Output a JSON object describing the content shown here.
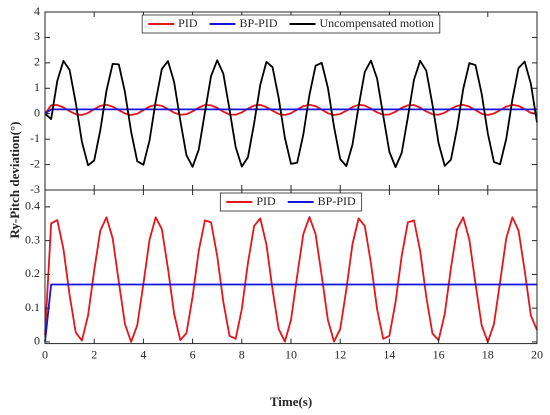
{
  "chart_data": [
    {
      "type": "line",
      "ylabel": "Ry-Pitch deviation(°)",
      "x": [
        0,
        0.25,
        0.5,
        0.75,
        1,
        1.25,
        1.5,
        1.75,
        2,
        2.25,
        2.5,
        2.75,
        3,
        3.25,
        3.5,
        3.75,
        4,
        4.25,
        4.5,
        4.75,
        5,
        5.25,
        5.5,
        5.75,
        6,
        6.25,
        6.5,
        6.75,
        7,
        7.25,
        7.5,
        7.75,
        8,
        8.25,
        8.5,
        8.75,
        9,
        9.25,
        9.5,
        9.75,
        10,
        10.25,
        10.5,
        10.75,
        11,
        11.25,
        11.5,
        11.75,
        12,
        12.25,
        12.5,
        12.75,
        13,
        13.25,
        13.5,
        13.75,
        14,
        14.25,
        14.5,
        14.75,
        15,
        15.25,
        15.5,
        15.75,
        16,
        16.25,
        16.5,
        16.75,
        17,
        17.25,
        17.5,
        17.75,
        18,
        18.25,
        18.5,
        18.75,
        19,
        19.25,
        19.5,
        19.75,
        20
      ],
      "xlim": [
        0,
        20
      ],
      "ylim": [
        -3,
        4
      ],
      "yticks": [
        -3,
        -2,
        -1,
        0,
        1,
        2,
        3,
        4
      ],
      "legend": "upper center",
      "series": [
        {
          "name": "PID",
          "color": "#e6141b",
          "values": [
            0,
            0.33,
            0.34,
            0.25,
            0.1,
            -0.02,
            -0.05,
            0.03,
            0.18,
            0.31,
            0.35,
            0.28,
            0.14,
            0.01,
            -0.05,
            0.0,
            0.14,
            0.28,
            0.35,
            0.31,
            0.18,
            0.04,
            -0.04,
            -0.02,
            0.09,
            0.24,
            0.34,
            0.33,
            0.23,
            0.08,
            -0.03,
            -0.04,
            0.05,
            0.2,
            0.32,
            0.35,
            0.26,
            0.12,
            -0.01,
            -0.05,
            0.02,
            0.16,
            0.3,
            0.35,
            0.3,
            0.16,
            0.02,
            -0.05,
            -0.01,
            0.12,
            0.26,
            0.35,
            0.32,
            0.2,
            0.05,
            -0.04,
            -0.03,
            0.08,
            0.23,
            0.33,
            0.34,
            0.24,
            0.09,
            -0.02,
            -0.04,
            0.04,
            0.19,
            0.31,
            0.35,
            0.28,
            0.14,
            0.0,
            -0.05,
            0.01,
            0.14,
            0.28,
            0.35,
            0.31,
            0.18,
            0.03,
            0
          ]
        },
        {
          "name": "BP-PID",
          "color": "#1414dc",
          "values": [
            0,
            0.17,
            0.17,
            0.17,
            0.17,
            0.17,
            0.17,
            0.17,
            0.17,
            0.17,
            0.17,
            0.17,
            0.17,
            0.17,
            0.17,
            0.17,
            0.17,
            0.17,
            0.17,
            0.17,
            0.17,
            0.17,
            0.17,
            0.17,
            0.17,
            0.17,
            0.17,
            0.17,
            0.17,
            0.17,
            0.17,
            0.17,
            0.17,
            0.17,
            0.17,
            0.17,
            0.17,
            0.17,
            0.17,
            0.17,
            0.17,
            0.17,
            0.17,
            0.17,
            0.17,
            0.17,
            0.17,
            0.17,
            0.17,
            0.17,
            0.17,
            0.17,
            0.17,
            0.17,
            0.17,
            0.17,
            0.17,
            0.17,
            0.17,
            0.17,
            0.17,
            0.17,
            0.17,
            0.17,
            0.17,
            0.17,
            0.17,
            0.17,
            0.17,
            0.17,
            0.17,
            0.17,
            0.17,
            0.17,
            0.17,
            0.17,
            0.17,
            0.17,
            0.17,
            0.17,
            0.17
          ]
        },
        {
          "name": "Uncompensated motion",
          "color": "#000000",
          "values": [
            0,
            -0.21,
            1.29,
            2.08,
            1.72,
            0.43,
            -1.1,
            -2.03,
            -1.84,
            -0.64,
            0.91,
            1.96,
            1.94,
            0.85,
            -0.7,
            -1.87,
            -2.01,
            -1.05,
            0.49,
            1.76,
            2.07,
            1.24,
            -0.27,
            -1.63,
            -2.09,
            -1.41,
            0.05,
            1.48,
            2.1,
            1.57,
            0.17,
            -1.31,
            -2.08,
            -1.71,
            -0.39,
            1.13,
            2.04,
            1.83,
            0.61,
            -0.94,
            -1.97,
            -1.93,
            -0.82,
            0.74,
            1.89,
            2.0,
            1.02,
            -0.52,
            -1.78,
            -2.06,
            -1.21,
            0.3,
            1.65,
            2.09,
            1.38,
            -0.08,
            -1.5,
            -2.1,
            -1.54,
            -0.14,
            1.34,
            2.08,
            1.69,
            0.36,
            -1.16,
            -2.05,
            -1.81,
            -0.58,
            0.97,
            1.99,
            1.91,
            0.79,
            -0.77,
            -1.9,
            -1.99,
            -0.99,
            0.56,
            1.8,
            2.05,
            1.18,
            -0.34
          ]
        }
      ]
    },
    {
      "type": "line",
      "xlabel": "Time(s)",
      "x": [
        0,
        0.25,
        0.5,
        0.75,
        1,
        1.25,
        1.5,
        1.75,
        2,
        2.25,
        2.5,
        2.75,
        3,
        3.25,
        3.5,
        3.75,
        4,
        4.25,
        4.5,
        4.75,
        5,
        5.25,
        5.5,
        5.75,
        6,
        6.25,
        6.5,
        6.75,
        7,
        7.25,
        7.5,
        7.75,
        8,
        8.25,
        8.5,
        8.75,
        9,
        9.25,
        9.5,
        9.75,
        10,
        10.25,
        10.5,
        10.75,
        11,
        11.25,
        11.5,
        11.75,
        12,
        12.25,
        12.5,
        12.75,
        13,
        13.25,
        13.5,
        13.75,
        14,
        14.25,
        14.5,
        14.75,
        15,
        15.25,
        15.5,
        15.75,
        16,
        16.25,
        16.5,
        16.75,
        17,
        17.25,
        17.5,
        17.75,
        18,
        18.25,
        18.5,
        18.75,
        19,
        19.25,
        19.5,
        19.75,
        20
      ],
      "xlim": [
        0,
        20
      ],
      "xticks": [
        0,
        2,
        4,
        6,
        8,
        10,
        12,
        14,
        16,
        18,
        20
      ],
      "ylim": [
        -0.005,
        0.45
      ],
      "yticks": [
        0,
        0.1,
        0.2,
        0.3,
        0.4
      ],
      "legend": "upper center",
      "series": [
        {
          "name": "PID",
          "color": "#e6141b",
          "values": [
            0.02,
            0.351,
            0.361,
            0.275,
            0.139,
            0.028,
            0.004,
            0.078,
            0.212,
            0.33,
            0.369,
            0.307,
            0.178,
            0.053,
            0.0,
            0.049,
            0.172,
            0.303,
            0.369,
            0.334,
            0.217,
            0.083,
            0.005,
            0.026,
            0.134,
            0.27,
            0.36,
            0.354,
            0.255,
            0.118,
            0.018,
            0.009,
            0.097,
            0.234,
            0.343,
            0.366,
            0.289,
            0.155,
            0.038,
            0.001,
            0.065,
            0.195,
            0.319,
            0.37,
            0.319,
            0.195,
            0.065,
            0.001,
            0.038,
            0.156,
            0.29,
            0.366,
            0.343,
            0.233,
            0.097,
            0.009,
            0.018,
            0.118,
            0.255,
            0.354,
            0.36,
            0.27,
            0.133,
            0.025,
            0.005,
            0.083,
            0.218,
            0.334,
            0.369,
            0.303,
            0.172,
            0.049,
            0.0,
            0.053,
            0.178,
            0.307,
            0.369,
            0.33,
            0.211,
            0.078,
            0.035
          ]
        },
        {
          "name": "BP-PID",
          "color": "#1414dc",
          "values": [
            0,
            0.17,
            0.17,
            0.17,
            0.17,
            0.17,
            0.17,
            0.17,
            0.17,
            0.17,
            0.17,
            0.17,
            0.17,
            0.17,
            0.17,
            0.17,
            0.17,
            0.17,
            0.17,
            0.17,
            0.17,
            0.17,
            0.17,
            0.17,
            0.17,
            0.17,
            0.17,
            0.17,
            0.17,
            0.17,
            0.17,
            0.17,
            0.17,
            0.17,
            0.17,
            0.17,
            0.17,
            0.17,
            0.17,
            0.17,
            0.17,
            0.17,
            0.17,
            0.17,
            0.17,
            0.17,
            0.17,
            0.17,
            0.17,
            0.17,
            0.17,
            0.17,
            0.17,
            0.17,
            0.17,
            0.17,
            0.17,
            0.17,
            0.17,
            0.17,
            0.17,
            0.17,
            0.17,
            0.17,
            0.17,
            0.17,
            0.17,
            0.17,
            0.17,
            0.17,
            0.17,
            0.17,
            0.17,
            0.17,
            0.17,
            0.17,
            0.17,
            0.17,
            0.17,
            0.17,
            0.17
          ]
        }
      ]
    }
  ]
}
